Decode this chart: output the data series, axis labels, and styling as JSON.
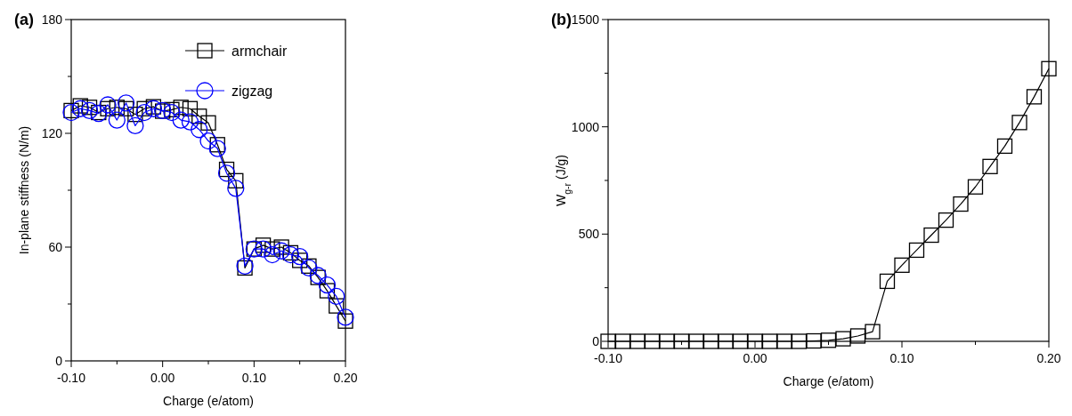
{
  "chart_data": [
    {
      "type": "line",
      "title": "(a)",
      "xlabel": "Charge (e/atom)",
      "ylabel": "In-plane stiffness (N/m)",
      "x": [
        -0.1,
        -0.09,
        -0.08,
        -0.07,
        -0.06,
        -0.05,
        -0.04,
        -0.03,
        -0.02,
        -0.01,
        0.0,
        0.01,
        0.02,
        0.03,
        0.04,
        0.05,
        0.06,
        0.07,
        0.08,
        0.09,
        0.1,
        0.11,
        0.12,
        0.13,
        0.14,
        0.15,
        0.16,
        0.17,
        0.18,
        0.19,
        0.2
      ],
      "xlim": [
        -0.1,
        0.2
      ],
      "xticks": [
        {
          "value": -0.1,
          "label": "-0.10"
        },
        {
          "value": -0.05,
          "label": null
        },
        {
          "value": 0,
          "label": "0.00"
        },
        {
          "value": 0.05,
          "label": null
        },
        {
          "value": 0.1,
          "label": "0.10"
        },
        {
          "value": 0.15,
          "label": null
        },
        {
          "value": 0.2,
          "label": "0.20"
        }
      ],
      "ylim": [
        0,
        180
      ],
      "yticks": [
        0,
        {
          "value": 30,
          "label": null
        },
        60,
        {
          "value": 90,
          "label": null
        },
        120,
        {
          "value": 150,
          "label": null
        },
        180
      ],
      "legend": "top right",
      "series": [
        {
          "name": "armchair",
          "color": "#000000",
          "marker": "square",
          "values": [
            132,
            134.5,
            133.7,
            131,
            133,
            133.7,
            133,
            130,
            133,
            134,
            131.7,
            132.5,
            133.7,
            133,
            129,
            125.5,
            114,
            101,
            95,
            49,
            59,
            61,
            59,
            60,
            57,
            53,
            50,
            44,
            37,
            29,
            21
          ]
        },
        {
          "name": "zigzag",
          "color": "#0000ff",
          "marker": "circle",
          "values": [
            131,
            133,
            132,
            130.5,
            135,
            127,
            136,
            124,
            131,
            133,
            132,
            131,
            127,
            126,
            122,
            116,
            112,
            99,
            91,
            50,
            59,
            59,
            56,
            58,
            56,
            55,
            49,
            45,
            40,
            34,
            23
          ]
        }
      ]
    },
    {
      "type": "line",
      "title": "(b)",
      "xlabel": "Charge (e/atom)",
      "ylabel": "W$_{g-r}$ (J/g)",
      "x": [
        -0.1,
        -0.09,
        -0.08,
        -0.07,
        -0.06,
        -0.05,
        -0.04,
        -0.03,
        -0.02,
        -0.01,
        0.0,
        0.01,
        0.02,
        0.03,
        0.04,
        0.05,
        0.06,
        0.07,
        0.08,
        0.09,
        0.1,
        0.11,
        0.12,
        0.13,
        0.14,
        0.15,
        0.16,
        0.17,
        0.18,
        0.19,
        0.2
      ],
      "xlim": [
        -0.1,
        0.2
      ],
      "xticks": [
        {
          "value": -0.1,
          "label": "-0.10"
        },
        {
          "value": -0.05,
          "label": null
        },
        {
          "value": 0,
          "label": "0.00"
        },
        {
          "value": 0.05,
          "label": null
        },
        {
          "value": 0.1,
          "label": "0.10"
        },
        {
          "value": 0.15,
          "label": null
        },
        {
          "value": 0.2,
          "label": "0.20"
        }
      ],
      "ylim": [
        0,
        1500
      ],
      "yticks": [
        0,
        {
          "value": 250,
          "label": null
        },
        500,
        {
          "value": 750,
          "label": null
        },
        1000,
        {
          "value": 1250,
          "label": null
        },
        1500
      ],
      "series": [
        {
          "color": "#000000",
          "marker": "square",
          "values": [
            0,
            0,
            0,
            0,
            0,
            0,
            0,
            0,
            0,
            0,
            0,
            0,
            0,
            0,
            2,
            5,
            12,
            25,
            45,
            280,
            355,
            425,
            495,
            565,
            640,
            720,
            815,
            910,
            1020,
            1140,
            1271
          ]
        }
      ]
    }
  ]
}
